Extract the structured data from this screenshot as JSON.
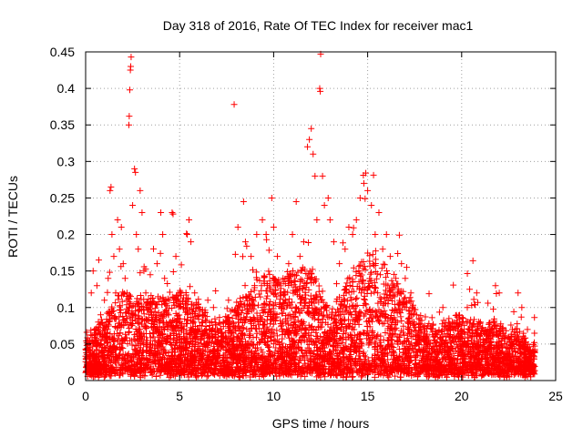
{
  "chart_data": {
    "type": "scatter",
    "title": "Day 318 of 2016, Rate Of TEC Index for receiver mac1",
    "xlabel": "GPS time / hours",
    "ylabel": "ROTI / TECUs",
    "xlim": [
      0,
      25
    ],
    "ylim": [
      0,
      0.45
    ],
    "xticks": [
      0,
      5,
      10,
      15,
      20,
      25
    ],
    "xtick_labels": [
      "0",
      "5",
      "10",
      "15",
      "20",
      "25"
    ],
    "yticks": [
      0,
      0.05,
      0.1,
      0.15,
      0.2,
      0.25,
      0.3,
      0.35,
      0.4,
      0.45
    ],
    "ytick_labels": [
      "0",
      "0.05",
      "0.1",
      "0.15",
      "0.2",
      "0.25",
      "0.3",
      "0.35",
      "0.4",
      "0.45"
    ],
    "grid": true,
    "marker": "+",
    "color": "#ff0000",
    "series": [
      {
        "name": "ROTI",
        "points": [
          [
            0.1,
            0.02
          ],
          [
            0.2,
            0.035
          ],
          [
            0.3,
            0.12
          ],
          [
            0.4,
            0.15
          ],
          [
            0.5,
            0.05
          ],
          [
            0.6,
            0.13
          ],
          [
            0.7,
            0.165
          ],
          [
            0.8,
            0.09
          ],
          [
            0.9,
            0.06
          ],
          [
            1.0,
            0.11
          ],
          [
            1.1,
            0.08
          ],
          [
            1.2,
            0.14
          ],
          [
            1.3,
            0.26
          ],
          [
            1.35,
            0.265
          ],
          [
            1.4,
            0.2
          ],
          [
            1.5,
            0.17
          ],
          [
            1.6,
            0.12
          ],
          [
            1.7,
            0.22
          ],
          [
            1.8,
            0.18
          ],
          [
            1.9,
            0.21
          ],
          [
            2.0,
            0.16
          ],
          [
            2.1,
            0.14
          ],
          [
            2.2,
            0.12
          ],
          [
            2.3,
            0.35
          ],
          [
            2.32,
            0.362
          ],
          [
            2.35,
            0.398
          ],
          [
            2.38,
            0.425
          ],
          [
            2.4,
            0.43
          ],
          [
            2.42,
            0.443
          ],
          [
            2.5,
            0.24
          ],
          [
            2.6,
            0.29
          ],
          [
            2.65,
            0.285
          ],
          [
            2.7,
            0.2
          ],
          [
            2.8,
            0.18
          ],
          [
            2.9,
            0.26
          ],
          [
            3.0,
            0.23
          ],
          [
            3.1,
            0.15
          ],
          [
            3.2,
            0.12
          ],
          [
            3.4,
            0.1
          ],
          [
            3.6,
            0.09
          ],
          [
            3.8,
            0.16
          ],
          [
            4.0,
            0.23
          ],
          [
            4.1,
            0.2
          ],
          [
            4.2,
            0.14
          ],
          [
            4.4,
            0.09
          ],
          [
            4.6,
            0.23
          ],
          [
            4.65,
            0.228
          ],
          [
            4.8,
            0.17
          ],
          [
            5.0,
            0.12
          ],
          [
            5.2,
            0.1
          ],
          [
            5.4,
            0.2
          ],
          [
            5.5,
            0.22
          ],
          [
            5.6,
            0.19
          ],
          [
            5.8,
            0.12
          ],
          [
            6.0,
            0.1
          ],
          [
            6.2,
            0.09
          ],
          [
            6.5,
            0.11
          ],
          [
            6.8,
            0.1
          ],
          [
            7.0,
            0.07
          ],
          [
            7.3,
            0.06
          ],
          [
            7.6,
            0.11
          ],
          [
            7.9,
            0.378
          ],
          [
            8.1,
            0.21
          ],
          [
            8.4,
            0.245
          ],
          [
            8.5,
            0.19
          ],
          [
            8.8,
            0.17
          ],
          [
            9.1,
            0.2
          ],
          [
            9.4,
            0.22
          ],
          [
            9.6,
            0.2
          ],
          [
            9.9,
            0.25
          ],
          [
            10.0,
            0.21
          ],
          [
            10.2,
            0.17
          ],
          [
            10.5,
            0.14
          ],
          [
            10.8,
            0.16
          ],
          [
            11.0,
            0.2
          ],
          [
            11.2,
            0.245
          ],
          [
            11.4,
            0.17
          ],
          [
            11.6,
            0.19
          ],
          [
            11.8,
            0.32
          ],
          [
            11.9,
            0.33
          ],
          [
            12.0,
            0.345
          ],
          [
            12.1,
            0.31
          ],
          [
            12.2,
            0.28
          ],
          [
            12.3,
            0.22
          ],
          [
            12.45,
            0.4
          ],
          [
            12.48,
            0.396
          ],
          [
            12.5,
            0.447
          ],
          [
            12.6,
            0.28
          ],
          [
            12.7,
            0.24
          ],
          [
            12.9,
            0.25
          ],
          [
            13.0,
            0.22
          ],
          [
            13.2,
            0.19
          ],
          [
            13.5,
            0.16
          ],
          [
            13.8,
            0.18
          ],
          [
            14.0,
            0.21
          ],
          [
            14.2,
            0.2
          ],
          [
            14.4,
            0.22
          ],
          [
            14.6,
            0.25
          ],
          [
            14.8,
            0.27
          ],
          [
            14.9,
            0.284
          ],
          [
            15.0,
            0.26
          ],
          [
            15.2,
            0.24
          ],
          [
            15.4,
            0.2
          ],
          [
            15.6,
            0.23
          ],
          [
            15.8,
            0.18
          ],
          [
            16.0,
            0.2
          ],
          [
            16.2,
            0.17
          ],
          [
            16.5,
            0.14
          ],
          [
            16.8,
            0.16
          ],
          [
            17.0,
            0.14
          ],
          [
            17.3,
            0.12
          ],
          [
            17.6,
            0.09
          ],
          [
            18.0,
            0.07
          ],
          [
            18.5,
            0.06
          ],
          [
            19.0,
            0.1
          ],
          [
            19.5,
            0.08
          ],
          [
            20.0,
            0.07
          ],
          [
            20.3,
            0.1
          ],
          [
            20.6,
            0.164
          ],
          [
            20.8,
            0.12
          ],
          [
            21.0,
            0.08
          ],
          [
            21.4,
            0.07
          ],
          [
            21.8,
            0.13
          ],
          [
            22.0,
            0.12
          ],
          [
            22.3,
            0.06
          ],
          [
            22.7,
            0.07
          ],
          [
            23.0,
            0.12
          ],
          [
            23.2,
            0.1
          ],
          [
            23.5,
            0.07
          ],
          [
            23.8,
            0.04
          ]
        ]
      }
    ],
    "noise": {
      "count": 5400,
      "x_range": [
        0,
        23.9
      ],
      "envelope_hours": [
        0,
        1,
        2,
        3,
        4,
        5,
        6,
        7,
        8,
        9,
        10,
        11,
        12,
        13,
        14,
        15,
        16,
        17,
        18,
        19,
        20,
        21,
        22,
        23,
        24
      ],
      "envelope_roti": [
        0.04,
        0.07,
        0.1,
        0.09,
        0.09,
        0.1,
        0.08,
        0.06,
        0.08,
        0.11,
        0.12,
        0.12,
        0.13,
        0.07,
        0.12,
        0.15,
        0.13,
        0.1,
        0.06,
        0.06,
        0.07,
        0.06,
        0.06,
        0.05,
        0.03
      ]
    }
  }
}
